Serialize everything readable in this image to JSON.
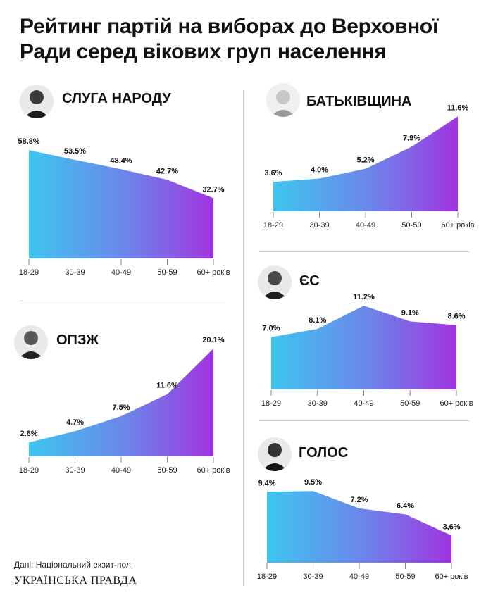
{
  "title": "Рейтинг партій на виборах до Верховної Ради серед вікових груп населення",
  "source": "Дані: Національний екзит-пол",
  "brand": "УКРАЇНСЬКА ПРАВДА",
  "colors": {
    "gradient_start": "#3ec6ee",
    "gradient_mid": "#6f82ea",
    "gradient_end": "#a033df",
    "divider": "#cfcfcf"
  },
  "chart_data": [
    {
      "type": "area",
      "title": "СЛУГА НАРОДУ",
      "categories": [
        "18-29",
        "30-39",
        "40-49",
        "50-59",
        "60+ років"
      ],
      "values": [
        58.8,
        53.5,
        48.4,
        42.7,
        32.7
      ],
      "labels": [
        "58.8%",
        "53.5%",
        "48.4%",
        "42.7%",
        "32.7%"
      ],
      "ylim": [
        0,
        60
      ],
      "grid": false
    },
    {
      "type": "area",
      "title": "ОПЗЖ",
      "categories": [
        "18-29",
        "30-39",
        "40-49",
        "50-59",
        "60+ років"
      ],
      "values": [
        2.6,
        4.7,
        7.5,
        11.6,
        20.1
      ],
      "labels": [
        "2.6%",
        "4.7%",
        "7.5%",
        "11.6%",
        "20.1%"
      ],
      "ylim": [
        0,
        20.5
      ],
      "grid": false
    },
    {
      "type": "area",
      "title": "БАТЬКІВЩИНА",
      "categories": [
        "18-29",
        "30-39",
        "40-49",
        "50-59",
        "60+ років"
      ],
      "values": [
        3.6,
        4.0,
        5.2,
        7.9,
        11.6
      ],
      "labels": [
        "3.6%",
        "4.0%",
        "5.2%",
        "7.9%",
        "11.6%"
      ],
      "ylim": [
        0,
        11.8
      ],
      "grid": false
    },
    {
      "type": "area",
      "title": "ЄС",
      "categories": [
        "18-29",
        "30-39",
        "40-49",
        "50-59",
        "60+ років"
      ],
      "values": [
        7.0,
        8.1,
        11.2,
        9.1,
        8.6
      ],
      "labels": [
        "7.0%",
        "8.1%",
        "11.2%",
        "9.1%",
        "8.6%"
      ],
      "ylim": [
        0,
        11.4
      ],
      "grid": false
    },
    {
      "type": "area",
      "title": "ГОЛОС",
      "categories": [
        "18-29",
        "30-39",
        "40-49",
        "50-59",
        "60+ років"
      ],
      "values": [
        9.4,
        9.5,
        7.2,
        6.4,
        3.6
      ],
      "labels": [
        "9.4%",
        "9.5%",
        "7.2%",
        "6.4%",
        "3,6%"
      ],
      "ylim": [
        0,
        9.8
      ],
      "grid": false
    }
  ]
}
